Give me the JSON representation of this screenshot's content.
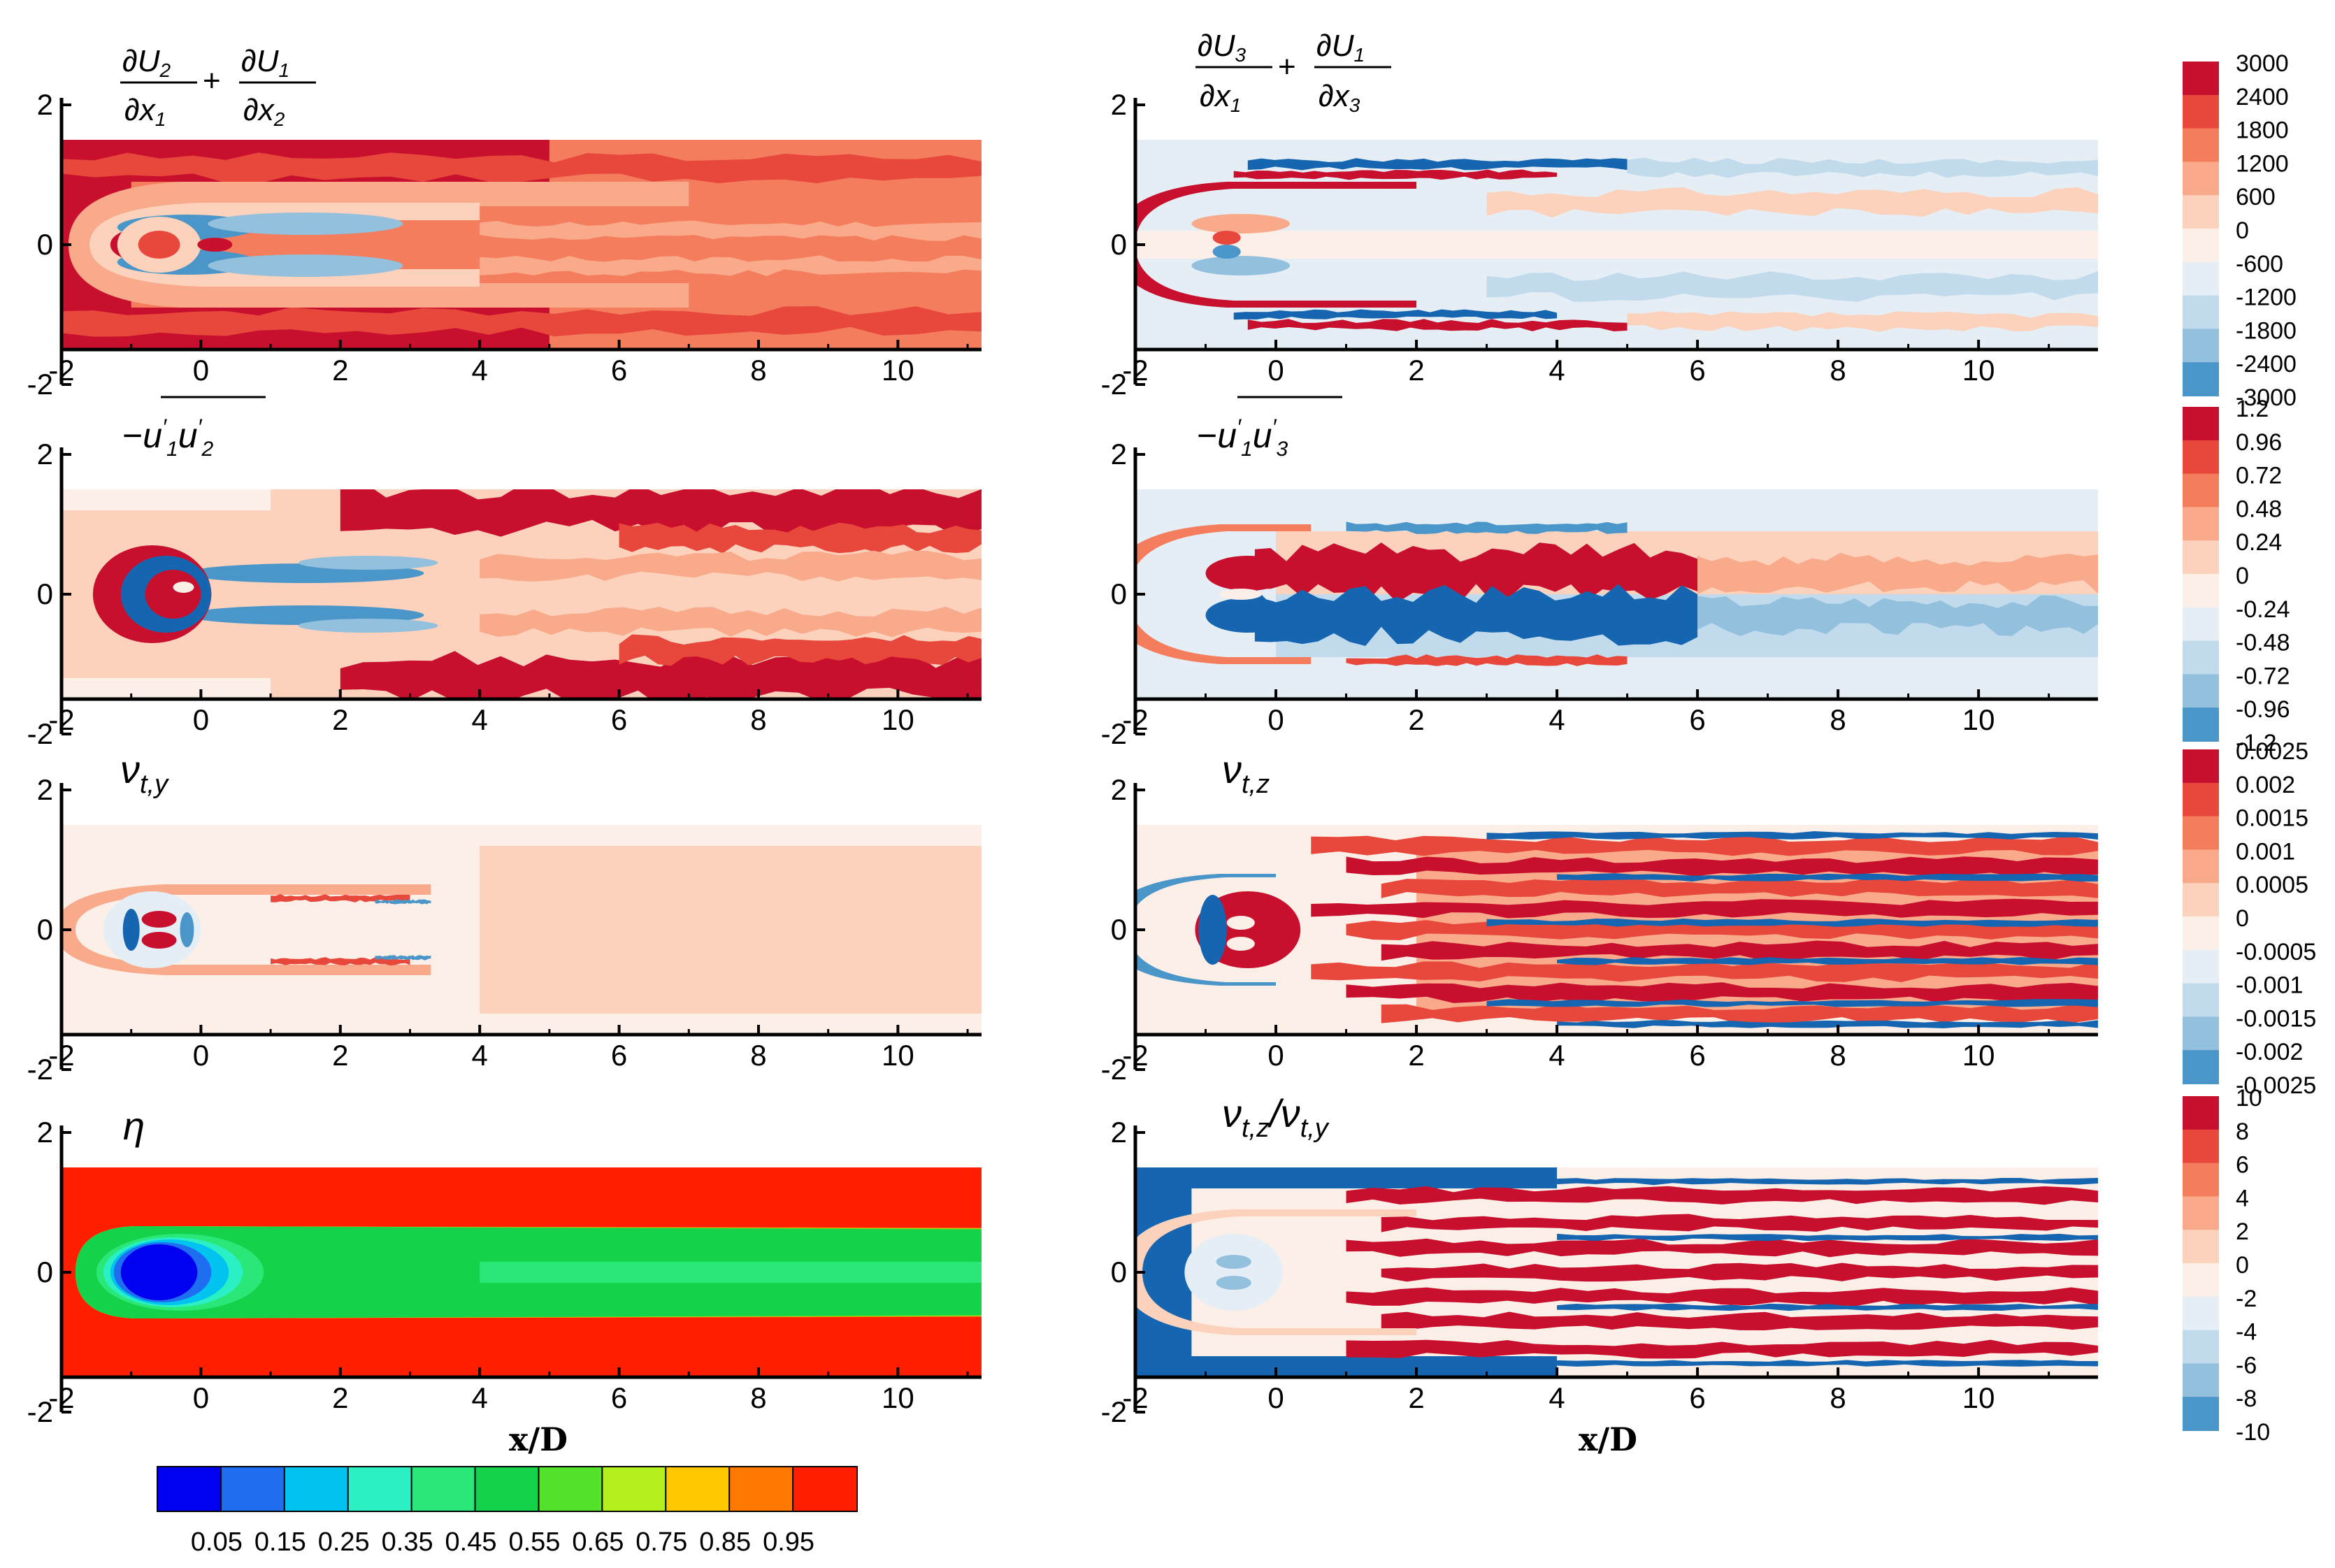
{
  "figure": {
    "xlabel": "x/D",
    "x_ticks": [
      "-2",
      "0",
      "2",
      "4",
      "6",
      "8",
      "10"
    ],
    "y_ticks": [
      "2",
      "0",
      "-2"
    ]
  },
  "chart_data": [
    {
      "id": "p1",
      "type": "heatmap",
      "title": "∂U2/∂x1 + ∂U1/∂x2",
      "xlim": [
        -2,
        11.2
      ],
      "ylim": [
        -1.5,
        1.5
      ],
      "colorbar": "cb1"
    },
    {
      "id": "p2",
      "type": "heatmap",
      "title": "∂U3/∂x1 + ∂U1/∂x3",
      "xlim": [
        -2,
        11.7
      ],
      "ylim": [
        -1.5,
        1.5
      ],
      "colorbar": "cb1"
    },
    {
      "id": "p3",
      "type": "heatmap",
      "title": "−u'1u'2 (overbar)",
      "xlim": [
        -2,
        11.2
      ],
      "ylim": [
        -1.5,
        1.5
      ],
      "colorbar": "cb2"
    },
    {
      "id": "p4",
      "type": "heatmap",
      "title": "−u'1u'3 (overbar)",
      "xlim": [
        -2,
        11.7
      ],
      "ylim": [
        -1.5,
        1.5
      ],
      "colorbar": "cb2"
    },
    {
      "id": "p5",
      "type": "heatmap",
      "title": "νt,y",
      "xlim": [
        -2,
        11.2
      ],
      "ylim": [
        -1.5,
        1.5
      ],
      "colorbar": "cb3"
    },
    {
      "id": "p6",
      "type": "heatmap",
      "title": "νt,z",
      "xlim": [
        -2,
        11.7
      ],
      "ylim": [
        -1.5,
        1.5
      ],
      "colorbar": "cb3"
    },
    {
      "id": "p7",
      "type": "heatmap",
      "title": "η",
      "xlim": [
        -2,
        11.2
      ],
      "ylim": [
        -1.5,
        1.5
      ],
      "colorbar": "cb_eta"
    },
    {
      "id": "p8",
      "type": "heatmap",
      "title": "νt,z/νt,y",
      "xlim": [
        -2,
        11.7
      ],
      "ylim": [
        -1.5,
        1.5
      ],
      "colorbar": "cb4"
    }
  ],
  "colorbars": {
    "cb1": {
      "labels": [
        "3000",
        "2400",
        "1800",
        "1200",
        "600",
        "0",
        "-600",
        "-1200",
        "-1800",
        "-2400",
        "-3000"
      ]
    },
    "cb2": {
      "labels": [
        "1.2",
        "0.96",
        "0.72",
        "0.48",
        "0.24",
        "0",
        "-0.24",
        "-0.48",
        "-0.72",
        "-0.96",
        "-1.2"
      ]
    },
    "cb3": {
      "labels": [
        "0.0025",
        "0.002",
        "0.0015",
        "0.001",
        "0.0005",
        "0",
        "-0.0005",
        "-0.001",
        "-0.0015",
        "-0.002",
        "-0.0025"
      ]
    },
    "cb4": {
      "labels": [
        "10",
        "8",
        "6",
        "4",
        "2",
        "0",
        "-2",
        "-4",
        "-6",
        "-8",
        "-10"
      ]
    },
    "cb_eta": {
      "labels": [
        "0.05",
        "0.15",
        "0.25",
        "0.35",
        "0.45",
        "0.55",
        "0.65",
        "0.75",
        "0.85",
        "0.95"
      ]
    }
  },
  "colors": {
    "div": [
      "#c8102e",
      "#e8473c",
      "#f47d5e",
      "#f9aa8a",
      "#fcd2bd",
      "#fcefe8",
      "#e5eef5",
      "#c2dbec",
      "#92c0dd",
      "#4a96c9",
      "#1565b0",
      "#0a4f99"
    ],
    "eta": [
      "#0000f0",
      "#1f6df0",
      "#00c3f0",
      "#2af0c3",
      "#2ae878",
      "#14d24a",
      "#55e22a",
      "#b4f01e",
      "#ffc800",
      "#ff7800",
      "#ff1e00"
    ]
  }
}
